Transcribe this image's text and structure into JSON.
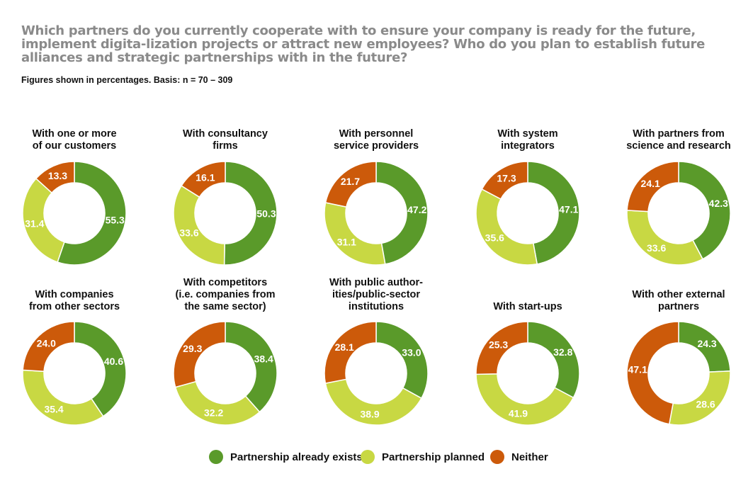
{
  "title": "Which partners do you currently cooperate with to ensure your company is ready for the future, implement digita-lization projects or attract new employees? Who do you plan to establish future alliances and strategic partnerships with in the future?",
  "subtitle": "Figures shown in percentages. Basis: n = 70 – 309",
  "colors": {
    "exists": "#5a9a2a",
    "planned": "#c8d843",
    "neither": "#cc5a0a"
  },
  "legend": {
    "exists": "Partnership already exists",
    "planned": "Partnership planned",
    "neither": "Neither"
  },
  "chart_data": [
    {
      "type": "pie",
      "title": "With one or more\nof our customers",
      "exists": 55.3,
      "planned": 31.4,
      "neither": 13.3,
      "labels": [
        "55.3",
        "31.4",
        "13.3"
      ]
    },
    {
      "type": "pie",
      "title": "With consultancy\nfirms",
      "exists": 50.3,
      "planned": 33.6,
      "neither": 16.1,
      "labels": [
        "50.3",
        "33.6",
        "16.1"
      ]
    },
    {
      "type": "pie",
      "title": "With personnel\nservice providers",
      "exists": 47.2,
      "planned": 31.1,
      "neither": 21.7,
      "labels": [
        "47.2",
        "31.1",
        "21.7"
      ]
    },
    {
      "type": "pie",
      "title": "With system\nintegrators",
      "exists": 47.1,
      "planned": 35.6,
      "neither": 17.3,
      "labels": [
        "47.1",
        "35.6",
        "17.3"
      ]
    },
    {
      "type": "pie",
      "title": "With partners from\nscience and research",
      "exists": 42.3,
      "planned": 33.6,
      "neither": 24.1,
      "labels": [
        "42.3",
        "33.6",
        "24.1"
      ]
    },
    {
      "type": "pie",
      "title": "With companies\nfrom other sectors",
      "exists": 40.6,
      "planned": 35.4,
      "neither": 24.0,
      "labels": [
        "40.6",
        "35.4",
        "24.0"
      ]
    },
    {
      "type": "pie",
      "title": "With competitors\n(i.e. companies from\nthe same sector)",
      "exists": 38.4,
      "planned": 32.2,
      "neither": 29.3,
      "labels": [
        "38.4",
        "32.2",
        "29.3"
      ]
    },
    {
      "type": "pie",
      "title": "With public author-\nities/public-sector\ninstitutions",
      "exists": 33.0,
      "planned": 38.9,
      "neither": 28.1,
      "labels": [
        "33.0",
        "38.9",
        "28.1"
      ]
    },
    {
      "type": "pie",
      "title": "With start-ups",
      "exists": 32.8,
      "planned": 41.9,
      "neither": 25.3,
      "labels": [
        "32.8",
        "41.9",
        "25.3"
      ]
    },
    {
      "type": "pie",
      "title": "With other external\npartners",
      "exists": 24.3,
      "planned": 28.6,
      "neither": 47.1,
      "labels": [
        "24.3",
        "28.6",
        "47.1"
      ]
    }
  ]
}
